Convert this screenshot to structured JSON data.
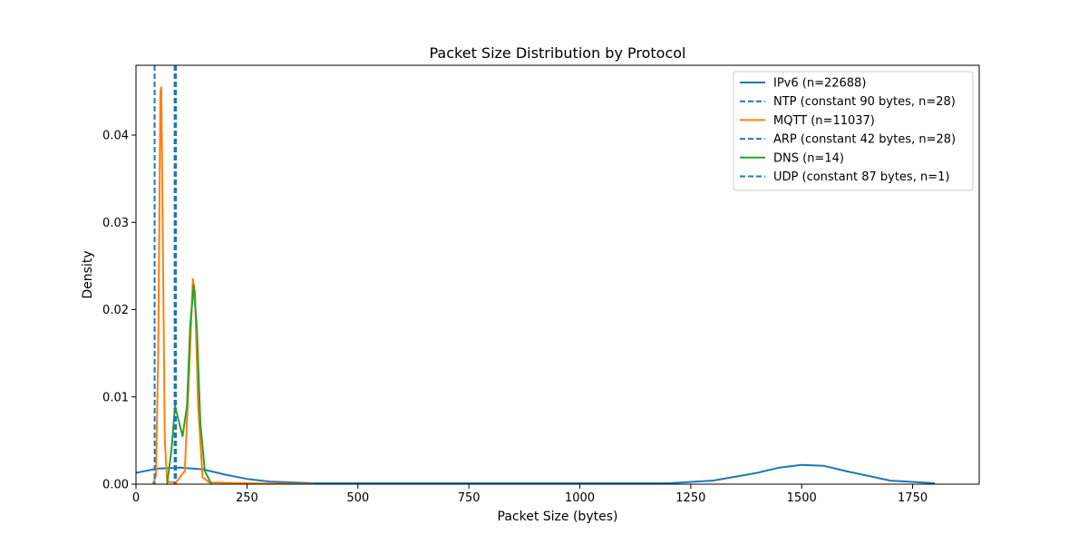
{
  "chart_data": {
    "type": "line",
    "title": "Packet Size Distribution by Protocol",
    "xlabel": "Packet Size (bytes)",
    "ylabel": "Density",
    "xlim": [
      0,
      1900
    ],
    "ylim": [
      0,
      0.048
    ],
    "xticks": [
      0,
      250,
      500,
      750,
      1000,
      1250,
      1500,
      1750
    ],
    "yticks": [
      0.0,
      0.01,
      0.02,
      0.03,
      0.04
    ],
    "xtick_labels": [
      "0",
      "250",
      "500",
      "750",
      "1000",
      "1250",
      "1500",
      "1750"
    ],
    "ytick_labels": [
      "0.00",
      "0.01",
      "0.02",
      "0.03",
      "0.04"
    ],
    "legend_position": "top-right",
    "grid": false,
    "series": [
      {
        "name": "IPv6 (n=22688)",
        "style": "solid",
        "color": "#1f77b4",
        "points": [
          [
            0,
            0.0013
          ],
          [
            50,
            0.0018
          ],
          [
            100,
            0.0019
          ],
          [
            150,
            0.0017
          ],
          [
            200,
            0.0011
          ],
          [
            250,
            0.0006
          ],
          [
            300,
            0.0003
          ],
          [
            400,
            0.0001
          ],
          [
            600,
            0.0001
          ],
          [
            1000,
            0.0001
          ],
          [
            1200,
            0.0001
          ],
          [
            1300,
            0.0004
          ],
          [
            1400,
            0.0013
          ],
          [
            1450,
            0.0019
          ],
          [
            1500,
            0.0022
          ],
          [
            1550,
            0.0021
          ],
          [
            1600,
            0.0015
          ],
          [
            1700,
            0.0004
          ],
          [
            1800,
            0.0001
          ]
        ]
      },
      {
        "name": "NTP (constant 90 bytes, n=28)",
        "style": "dashed",
        "color": "#1f77b4",
        "x": 90
      },
      {
        "name": "MQTT (n=11037)",
        "style": "solid",
        "color": "#ff7f0e",
        "points": [
          [
            38,
            0.0
          ],
          [
            45,
            0.001
          ],
          [
            50,
            0.015
          ],
          [
            55,
            0.045
          ],
          [
            57,
            0.0455
          ],
          [
            60,
            0.03
          ],
          [
            65,
            0.005
          ],
          [
            70,
            0.0003
          ],
          [
            90,
            0.0002
          ],
          [
            110,
            0.0015
          ],
          [
            120,
            0.013
          ],
          [
            128,
            0.0235
          ],
          [
            133,
            0.022
          ],
          [
            140,
            0.009
          ],
          [
            150,
            0.0008
          ],
          [
            165,
            0.0002
          ],
          [
            250,
            0.0001
          ],
          [
            400,
            0.0
          ]
        ]
      },
      {
        "name": "ARP (constant 42 bytes, n=28)",
        "style": "dashed",
        "color": "#1f77b4",
        "x": 42
      },
      {
        "name": "DNS (n=14)",
        "style": "solid",
        "color": "#2ca02c",
        "points": [
          [
            70,
            0.0
          ],
          [
            80,
            0.004
          ],
          [
            88,
            0.009
          ],
          [
            95,
            0.0075
          ],
          [
            105,
            0.0055
          ],
          [
            115,
            0.009
          ],
          [
            122,
            0.018
          ],
          [
            130,
            0.0228
          ],
          [
            137,
            0.018
          ],
          [
            145,
            0.007
          ],
          [
            155,
            0.0015
          ],
          [
            170,
            0.0
          ]
        ]
      },
      {
        "name": "UDP (constant 87 bytes, n=1)",
        "style": "dashed",
        "color": "#1f77b4",
        "x": 87
      }
    ]
  }
}
